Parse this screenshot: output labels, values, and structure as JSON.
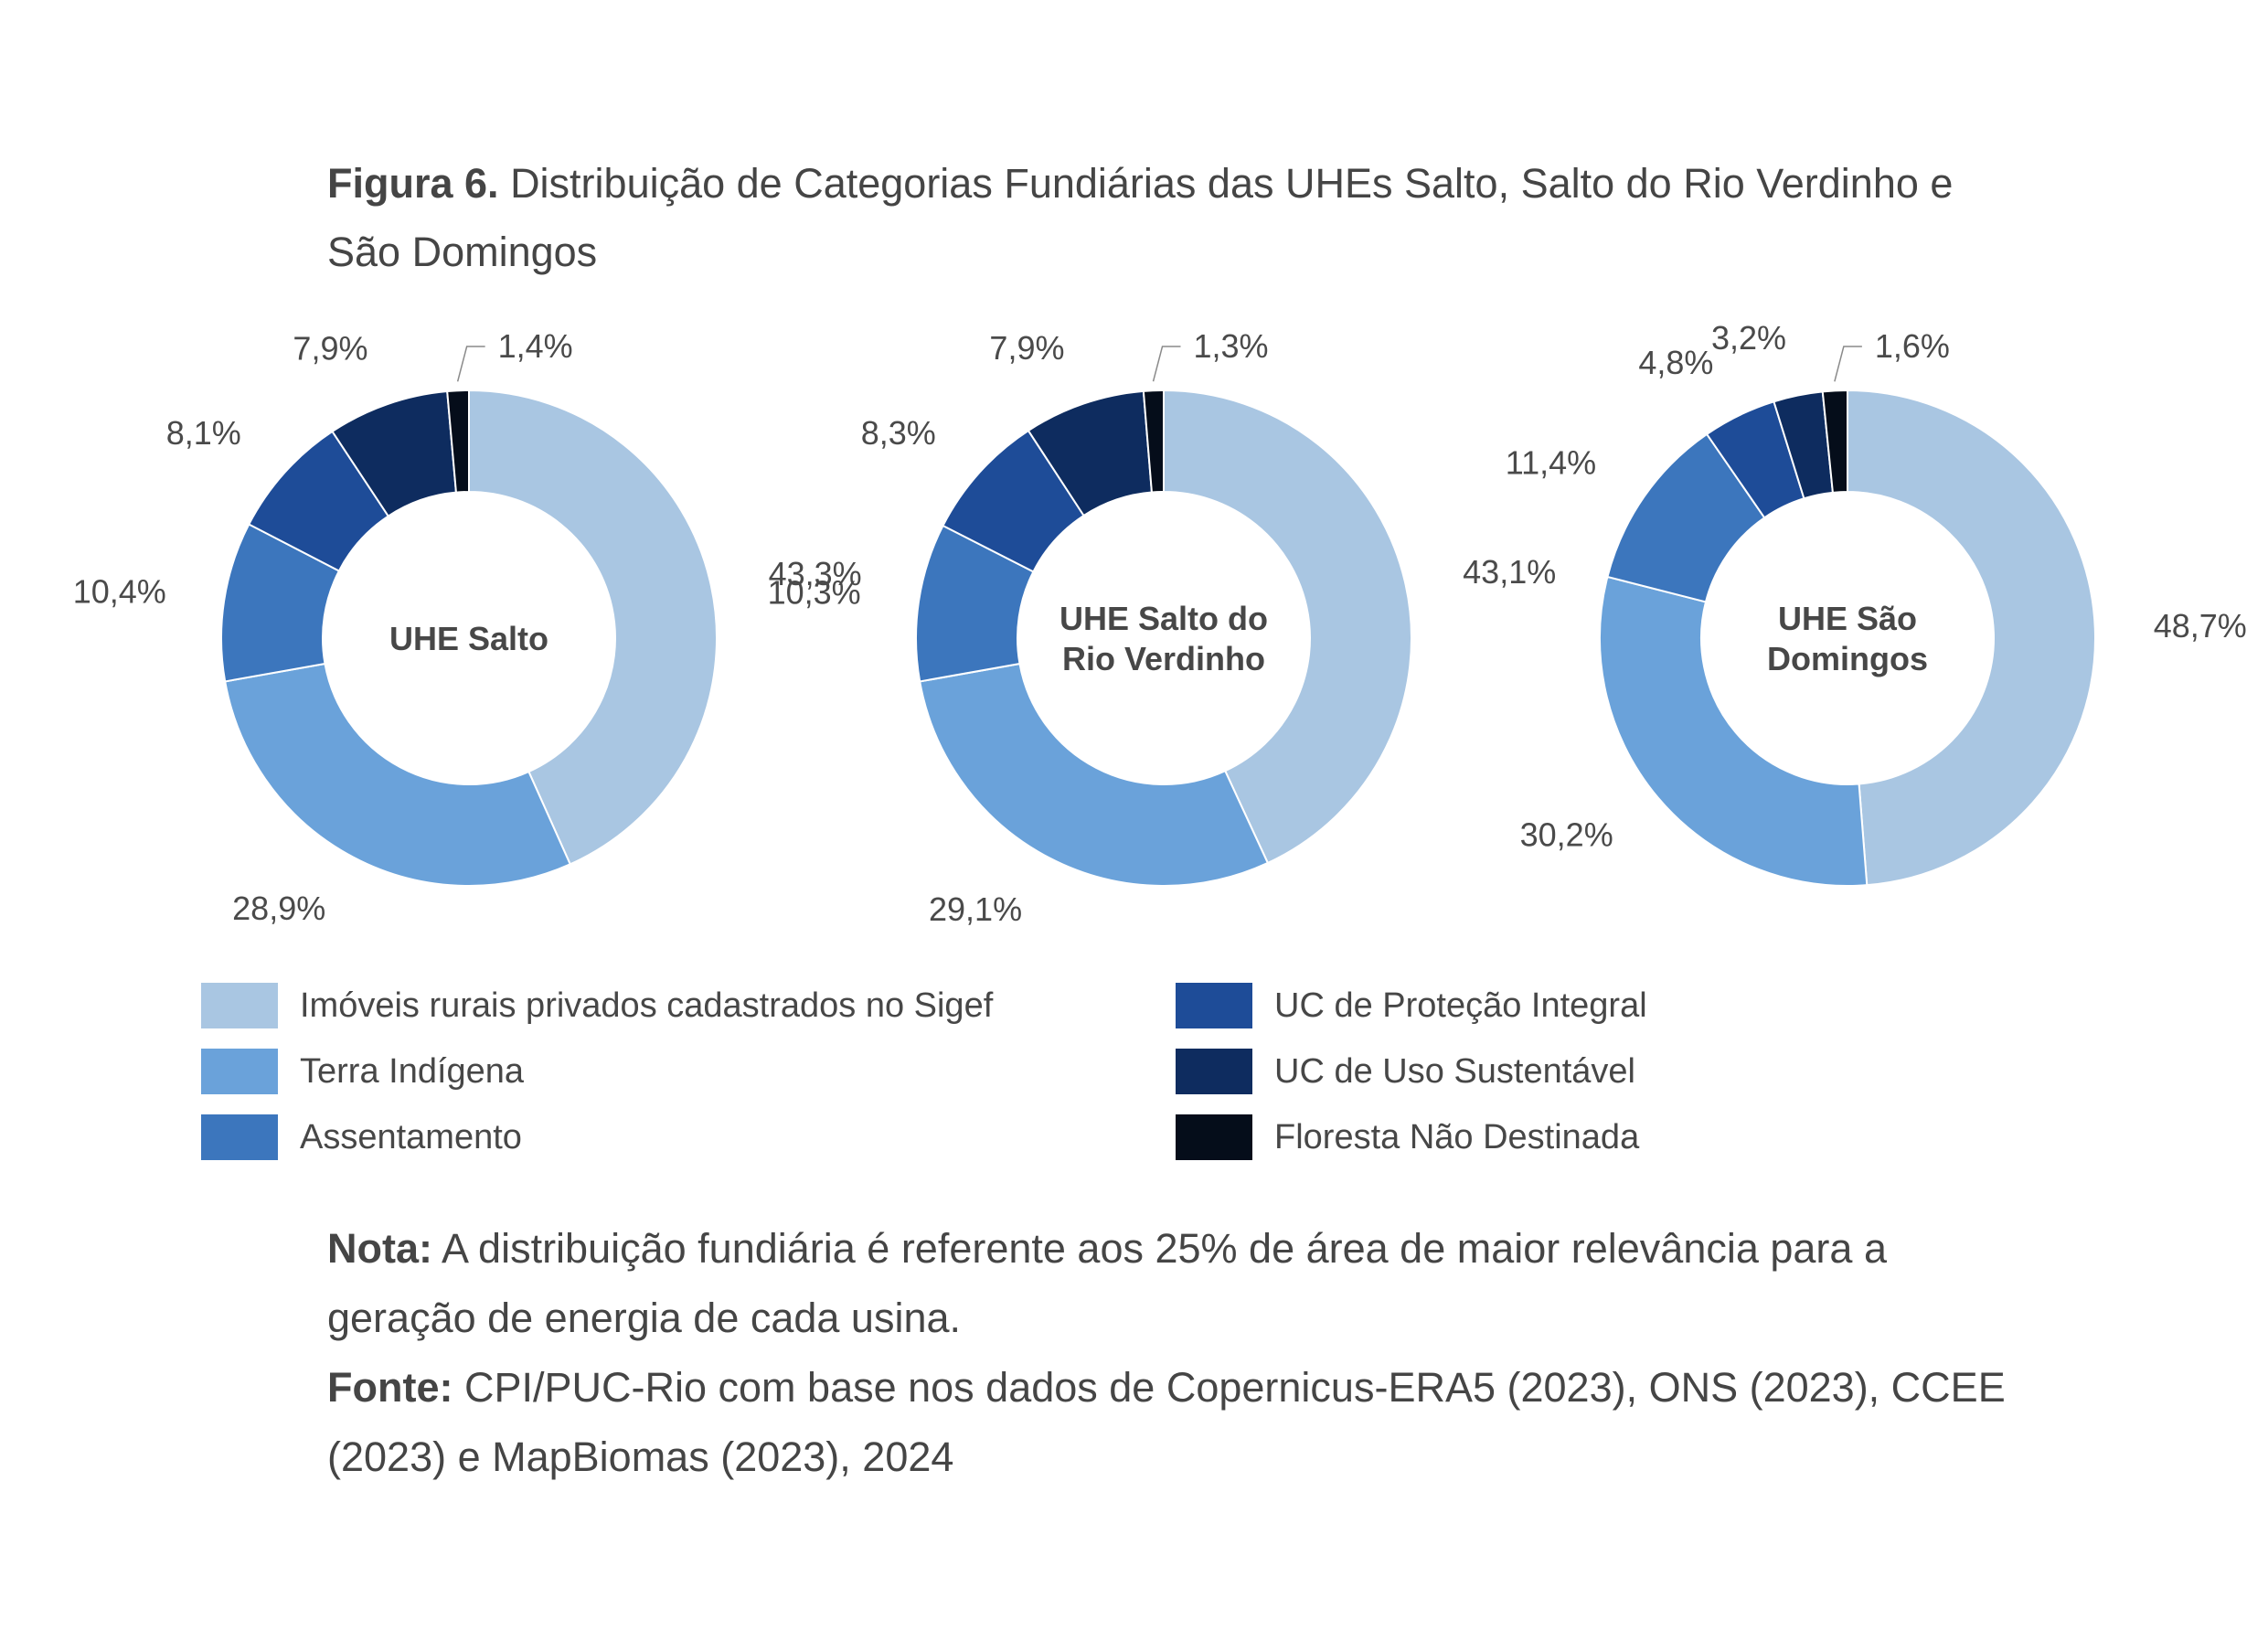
{
  "caption": {
    "label": "Figura 6.",
    "text": "Distribuição de Categorias Fundiárias das UHEs Salto, Salto do Rio Verdinho e São Domingos"
  },
  "legend": [
    {
      "label": "Imóveis rurais privados cadastrados no Sigef",
      "color": "#a9c6e2"
    },
    {
      "label": "Terra Indígena",
      "color": "#6aa2da"
    },
    {
      "label": "Assentamento",
      "color": "#3c76bd"
    },
    {
      "label": "UC de Proteção Integral",
      "color": "#1e4c98"
    },
    {
      "label": "UC de Uso Sustentável",
      "color": "#0e2c5f"
    },
    {
      "label": "Floresta Não Destinada",
      "color": "#050d1a"
    }
  ],
  "chart_data": [
    {
      "type": "pie",
      "donut": true,
      "center_label": [
        "UHE Salto"
      ],
      "categories": [
        "Imóveis rurais privados cadastrados no Sigef",
        "Terra Indígena",
        "Assentamento",
        "UC de Proteção Integral",
        "UC de Uso Sustentável",
        "Floresta Não Destinada"
      ],
      "values": [
        43.3,
        28.9,
        10.4,
        8.1,
        7.9,
        1.4
      ],
      "labels": [
        "43,3%",
        "28,9%",
        "10,4%",
        "8,1%",
        "7,9%",
        "1,4%"
      ]
    },
    {
      "type": "pie",
      "donut": true,
      "center_label": [
        "UHE Salto do",
        "Rio Verdinho"
      ],
      "categories": [
        "Imóveis rurais privados cadastrados no Sigef",
        "Terra Indígena",
        "Assentamento",
        "UC de Proteção Integral",
        "UC de Uso Sustentável",
        "Floresta Não Destinada"
      ],
      "values": [
        43.1,
        29.1,
        10.3,
        8.3,
        7.9,
        1.3
      ],
      "labels": [
        "43,1%",
        "29,1%",
        "10,3%",
        "8,3%",
        "7,9%",
        "1,3%"
      ]
    },
    {
      "type": "pie",
      "donut": true,
      "center_label": [
        "UHE São",
        "Domingos"
      ],
      "categories": [
        "Imóveis rurais privados cadastrados no Sigef",
        "Terra Indígena",
        "Assentamento",
        "UC de Proteção Integral",
        "UC de Uso Sustentável",
        "Floresta Não Destinada"
      ],
      "values": [
        48.7,
        30.2,
        11.4,
        4.8,
        3.2,
        1.6
      ],
      "labels": [
        "48,7%",
        "30,2%",
        "11,4%",
        "4,8%",
        "3,2%",
        "1,6%"
      ]
    }
  ],
  "notes": {
    "nota_label": "Nota:",
    "nota_text": "A distribuição fundiária é referente aos 25% de área de maior relevância para a geração de energia de cada usina.",
    "fonte_label": "Fonte:",
    "fonte_text": "CPI/PUC-Rio com base nos dados de Copernicus-ERA5 (2023), ONS (2023), CCEE (2023) e MapBiomas (2023), 2024"
  }
}
